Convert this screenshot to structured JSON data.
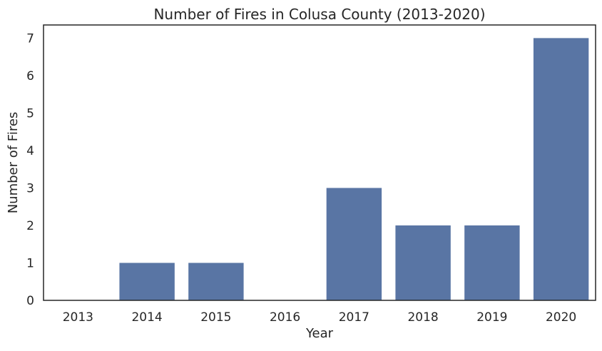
{
  "chart_data": {
    "type": "bar",
    "title": "Number of Fires in Colusa County (2013-2020)",
    "xlabel": "Year",
    "ylabel": "Number of Fires",
    "categories": [
      "2013",
      "2014",
      "2015",
      "2016",
      "2017",
      "2018",
      "2019",
      "2020"
    ],
    "values": [
      0,
      1,
      1,
      0,
      3,
      2,
      2,
      7
    ],
    "ylim": [
      0,
      7.35
    ],
    "yticks": [
      0,
      1,
      2,
      3,
      4,
      5,
      6,
      7
    ],
    "grid": false,
    "bar_color": "#5975a4",
    "axis_color": "#262626"
  }
}
